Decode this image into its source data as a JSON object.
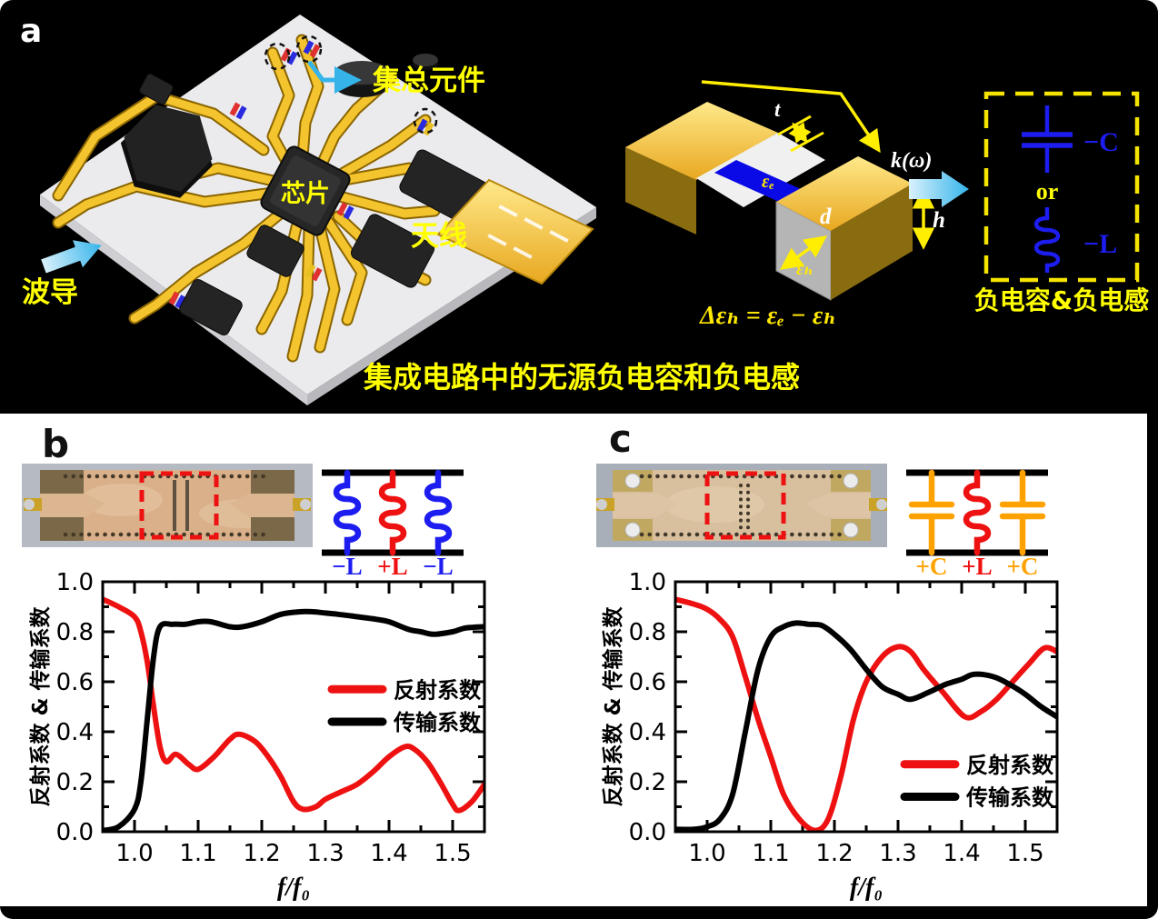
{
  "figure": {
    "panel_a": {
      "label": "a",
      "caption": "集成电路中的无源负电容和负电感",
      "board": {
        "lumped_label": "集总元件",
        "chip_label": "芯片",
        "antenna_label": "天线",
        "waveguide_label": "波导"
      },
      "unit_cell": {
        "t_label": "t",
        "d_label": "d",
        "h_label": "h",
        "eps_e_label": "εₑ",
        "eps_h_label": "εₕ",
        "k_label": "k(ω)",
        "equation": "Δεₕ = εₑ − εₕ"
      },
      "circuit": {
        "neg_c_label": "−C",
        "or_label": "or",
        "neg_l_label": "−L",
        "caption": "负电容&负电感"
      }
    },
    "panel_b": {
      "label": "b",
      "schematic": {
        "labels": [
          "−L",
          "+L",
          "−L"
        ],
        "colors": [
          "#1d1df0",
          "#ee1111",
          "#1d1df0"
        ]
      }
    },
    "panel_c": {
      "label": "c",
      "schematic": {
        "labels": [
          "+C",
          "+L",
          "+C"
        ],
        "colors": [
          "#ffa200",
          "#ee1111",
          "#ffa200"
        ]
      }
    }
  },
  "chart_data": [
    {
      "id": "chart-b",
      "type": "line",
      "title": "",
      "xlabel": "f/f₀",
      "ylabel": "反射系数 & 传输系数",
      "xlim": [
        0.95,
        1.55
      ],
      "ylim": [
        0.0,
        1.0
      ],
      "xticks": [
        1.0,
        1.1,
        1.2,
        1.3,
        1.4,
        1.5
      ],
      "yticks": [
        0.0,
        0.2,
        0.4,
        0.6,
        0.8,
        1.0
      ],
      "minor_x": [
        1.05,
        1.15,
        1.25,
        1.35,
        1.45
      ],
      "minor_y": [
        0.1,
        0.3,
        0.5,
        0.7,
        0.9
      ],
      "grid": false,
      "legend": {
        "x_frac": 0.6,
        "row_fracs": [
          0.43,
          0.56
        ]
      },
      "series": [
        {
          "name": "反射系数",
          "color": "#ee1111",
          "x": [
            0.95,
            0.975,
            1.0,
            1.01,
            1.02,
            1.03,
            1.04,
            1.05,
            1.065,
            1.085,
            1.1,
            1.125,
            1.15,
            1.165,
            1.19,
            1.21,
            1.23,
            1.25,
            1.265,
            1.285,
            1.3,
            1.325,
            1.35,
            1.375,
            1.4,
            1.425,
            1.44,
            1.46,
            1.48,
            1.5,
            1.51,
            1.53,
            1.55
          ],
          "y": [
            0.93,
            0.9,
            0.86,
            0.8,
            0.68,
            0.5,
            0.34,
            0.28,
            0.31,
            0.27,
            0.25,
            0.3,
            0.37,
            0.39,
            0.36,
            0.3,
            0.22,
            0.12,
            0.09,
            0.1,
            0.13,
            0.16,
            0.19,
            0.24,
            0.3,
            0.34,
            0.33,
            0.28,
            0.2,
            0.11,
            0.085,
            0.12,
            0.19
          ]
        },
        {
          "name": "传输系数",
          "color": "#000000",
          "x": [
            0.95,
            0.975,
            1.0,
            1.01,
            1.02,
            1.03,
            1.04,
            1.06,
            1.08,
            1.1,
            1.12,
            1.15,
            1.17,
            1.2,
            1.23,
            1.26,
            1.28,
            1.3,
            1.32,
            1.35,
            1.38,
            1.4,
            1.43,
            1.45,
            1.47,
            1.5,
            1.52,
            1.55
          ],
          "y": [
            0.005,
            0.02,
            0.09,
            0.2,
            0.45,
            0.7,
            0.82,
            0.83,
            0.83,
            0.84,
            0.84,
            0.82,
            0.82,
            0.84,
            0.87,
            0.88,
            0.88,
            0.875,
            0.87,
            0.86,
            0.85,
            0.84,
            0.81,
            0.8,
            0.79,
            0.8,
            0.815,
            0.82
          ]
        }
      ]
    },
    {
      "id": "chart-c",
      "type": "line",
      "title": "",
      "xlabel": "f/f₀",
      "ylabel": "反射系数 & 传输系数",
      "xlim": [
        0.95,
        1.55
      ],
      "ylim": [
        0.0,
        1.0
      ],
      "xticks": [
        1.0,
        1.1,
        1.2,
        1.3,
        1.4,
        1.5
      ],
      "yticks": [
        0.0,
        0.2,
        0.4,
        0.6,
        0.8,
        1.0
      ],
      "minor_x": [
        1.05,
        1.15,
        1.25,
        1.35,
        1.45
      ],
      "minor_y": [
        0.1,
        0.3,
        0.5,
        0.7,
        0.9
      ],
      "grid": false,
      "legend": {
        "x_frac": 0.6,
        "row_fracs": [
          0.73,
          0.86
        ]
      },
      "series": [
        {
          "name": "反射系数",
          "color": "#ee1111",
          "x": [
            0.95,
            0.98,
            1.0,
            1.02,
            1.04,
            1.06,
            1.08,
            1.1,
            1.12,
            1.145,
            1.17,
            1.19,
            1.21,
            1.23,
            1.25,
            1.275,
            1.3,
            1.32,
            1.34,
            1.37,
            1.405,
            1.43,
            1.455,
            1.48,
            1.505,
            1.53,
            1.55
          ],
          "y": [
            0.93,
            0.91,
            0.89,
            0.85,
            0.78,
            0.62,
            0.45,
            0.3,
            0.15,
            0.05,
            0.005,
            0.05,
            0.22,
            0.45,
            0.6,
            0.7,
            0.74,
            0.72,
            0.65,
            0.56,
            0.46,
            0.48,
            0.53,
            0.6,
            0.67,
            0.735,
            0.72
          ]
        },
        {
          "name": "传输系数",
          "color": "#000000",
          "x": [
            0.95,
            0.98,
            1.0,
            1.02,
            1.04,
            1.06,
            1.08,
            1.1,
            1.12,
            1.14,
            1.16,
            1.18,
            1.2,
            1.225,
            1.25,
            1.275,
            1.3,
            1.32,
            1.35,
            1.375,
            1.4,
            1.42,
            1.45,
            1.475,
            1.5,
            1.525,
            1.55
          ],
          "y": [
            0.01,
            0.01,
            0.02,
            0.05,
            0.15,
            0.4,
            0.65,
            0.78,
            0.82,
            0.835,
            0.83,
            0.825,
            0.79,
            0.73,
            0.65,
            0.58,
            0.55,
            0.53,
            0.56,
            0.59,
            0.61,
            0.63,
            0.62,
            0.59,
            0.55,
            0.5,
            0.46
          ]
        }
      ]
    }
  ],
  "colors": {
    "panel_bg": "#000000",
    "content_bg": "#ffffff",
    "label_yellow": "#ffff00",
    "arrow_cyan": "#35b4ea",
    "trace_gold": "#f4c42e",
    "circuit_blue": "#1d1df0",
    "curve_red": "#ee1111",
    "cap_orange": "#ffa200",
    "dash_highlight": "#ee1111"
  }
}
